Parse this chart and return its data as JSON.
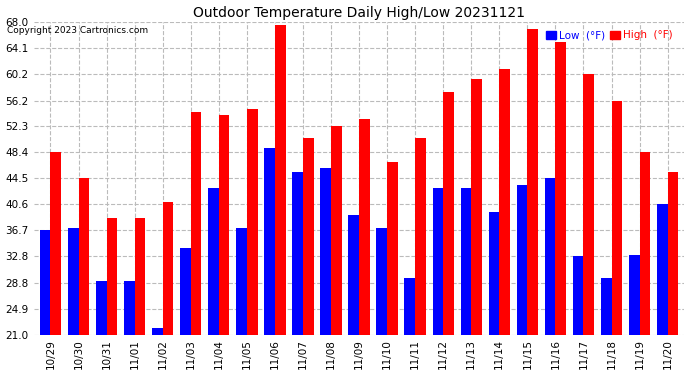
{
  "title": "Outdoor Temperature Daily High/Low 20231121",
  "copyright": "Copyright 2023 Cartronics.com",
  "legend_low": "Low  (°F)",
  "legend_high": "High  (°F)",
  "low_color": "#0000ff",
  "high_color": "#ff0000",
  "background_color": "#ffffff",
  "grid_color": "#bbbbbb",
  "ylim_min": 21.0,
  "ylim_max": 68.0,
  "yticks": [
    21.0,
    24.9,
    28.8,
    32.8,
    36.7,
    40.6,
    44.5,
    48.4,
    52.3,
    56.2,
    60.2,
    64.1,
    68.0
  ],
  "dates": [
    "10/29",
    "10/30",
    "10/31",
    "11/01",
    "11/02",
    "11/03",
    "11/04",
    "11/05",
    "11/06",
    "11/07",
    "11/08",
    "11/09",
    "11/10",
    "11/11",
    "11/12",
    "11/13",
    "11/14",
    "11/15",
    "11/16",
    "11/17",
    "11/18",
    "11/19",
    "11/20"
  ],
  "highs": [
    48.4,
    44.5,
    38.5,
    38.5,
    41.0,
    54.5,
    54.0,
    55.0,
    67.5,
    50.5,
    52.3,
    53.5,
    47.0,
    50.5,
    57.5,
    59.5,
    61.0,
    67.0,
    65.0,
    60.2,
    56.2,
    48.4,
    45.5
  ],
  "lows": [
    36.7,
    37.0,
    29.0,
    29.0,
    22.0,
    34.0,
    43.0,
    37.0,
    49.0,
    45.5,
    46.0,
    39.0,
    37.0,
    29.5,
    43.0,
    43.0,
    39.5,
    43.5,
    44.5,
    32.8,
    29.5,
    33.0,
    40.6
  ]
}
